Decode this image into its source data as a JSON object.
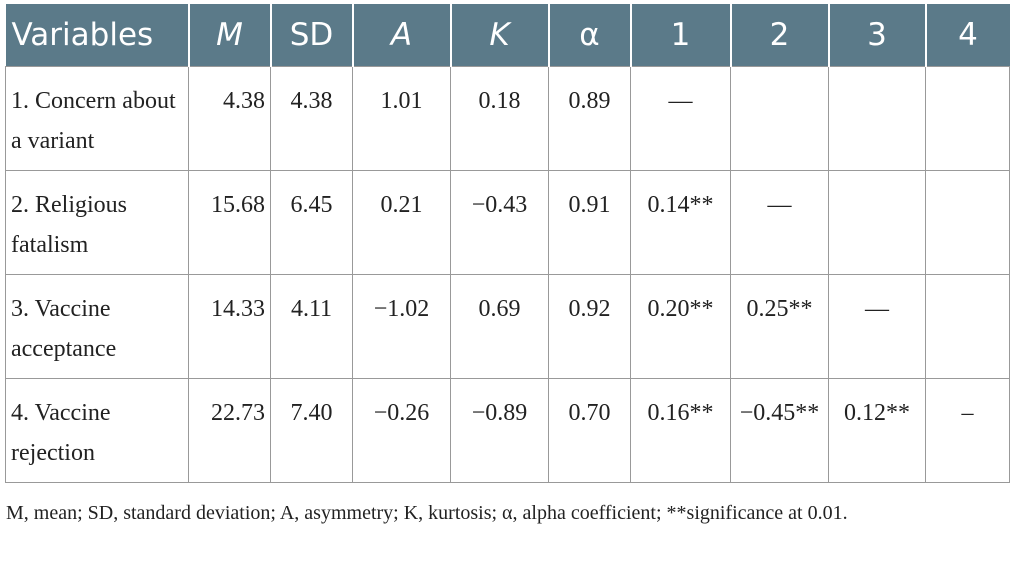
{
  "table": {
    "header": [
      "Variables",
      "M",
      "SD",
      "A",
      "K",
      "α",
      "1",
      "2",
      "3",
      "4"
    ],
    "rows": [
      [
        "1. Concern about a variant",
        "4.38",
        "4.38",
        "1.01",
        "0.18",
        "0.89",
        "—"
      ],
      [
        "2. Religious fatalism",
        "15.68",
        "6.45",
        "0.21",
        "−0.43",
        "0.91",
        "0.14**",
        "—"
      ],
      [
        "3. Vaccine acceptance",
        "14.33",
        "4.11",
        "−1.02",
        "0.69",
        "0.92",
        "0.20**",
        "0.25**",
        "—"
      ],
      [
        "4. Vaccine rejection",
        "22.73",
        "7.40",
        "−0.26",
        "−0.89",
        "0.70",
        "0.16**",
        "−0.45**",
        "0.12**",
        "–"
      ]
    ]
  },
  "footnote": "M, mean; SD, standard deviation; A, asymmetry; K, kurtosis; α, alpha coefficient; **significance at 0.01."
}
